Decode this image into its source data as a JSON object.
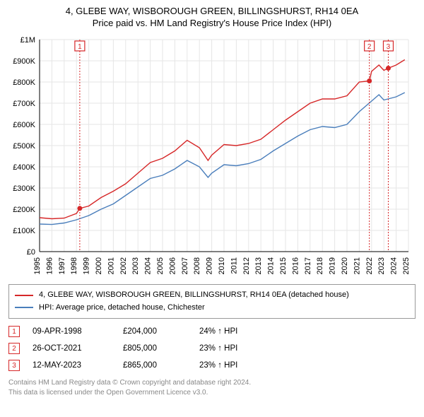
{
  "title": {
    "main": "4, GLEBE WAY, WISBOROUGH GREEN, BILLINGSHURST, RH14 0EA",
    "sub": "Price paid vs. HM Land Registry's House Price Index (HPI)"
  },
  "chart": {
    "type": "line",
    "background_color": "#ffffff",
    "grid_color": "#e6e6e6",
    "axis_color": "#000000",
    "label_fontsize": 11,
    "xlim": [
      1995,
      2025
    ],
    "ylim": [
      0,
      1000000
    ],
    "ytick_step": 100000,
    "ytick_labels": [
      "£0",
      "£100K",
      "£200K",
      "£300K",
      "£400K",
      "£500K",
      "£600K",
      "£700K",
      "£800K",
      "£900K",
      "£1M"
    ],
    "xticks": [
      1995,
      1996,
      1997,
      1998,
      1999,
      2000,
      2001,
      2002,
      2003,
      2004,
      2005,
      2006,
      2007,
      2008,
      2009,
      2010,
      2011,
      2012,
      2013,
      2014,
      2015,
      2016,
      2017,
      2018,
      2019,
      2020,
      2021,
      2022,
      2023,
      2024,
      2025
    ],
    "series": [
      {
        "id": "property",
        "color": "#d62728",
        "line_width": 1.4,
        "points": [
          [
            1995,
            160000
          ],
          [
            1996,
            155000
          ],
          [
            1997,
            158000
          ],
          [
            1998,
            180000
          ],
          [
            1998.27,
            204000
          ],
          [
            1999,
            215000
          ],
          [
            2000,
            255000
          ],
          [
            2001,
            285000
          ],
          [
            2002,
            320000
          ],
          [
            2003,
            370000
          ],
          [
            2004,
            420000
          ],
          [
            2005,
            440000
          ],
          [
            2006,
            475000
          ],
          [
            2007,
            525000
          ],
          [
            2008,
            490000
          ],
          [
            2008.7,
            430000
          ],
          [
            2009,
            455000
          ],
          [
            2010,
            505000
          ],
          [
            2011,
            500000
          ],
          [
            2012,
            510000
          ],
          [
            2013,
            530000
          ],
          [
            2014,
            575000
          ],
          [
            2015,
            620000
          ],
          [
            2016,
            660000
          ],
          [
            2017,
            700000
          ],
          [
            2018,
            720000
          ],
          [
            2019,
            720000
          ],
          [
            2020,
            735000
          ],
          [
            2021,
            800000
          ],
          [
            2021.82,
            805000
          ],
          [
            2022,
            850000
          ],
          [
            2022.6,
            880000
          ],
          [
            2023,
            855000
          ],
          [
            2023.36,
            865000
          ],
          [
            2024,
            880000
          ],
          [
            2024.7,
            905000
          ]
        ]
      },
      {
        "id": "hpi",
        "color": "#4a7ebb",
        "line_width": 1.4,
        "points": [
          [
            1995,
            130000
          ],
          [
            1996,
            128000
          ],
          [
            1997,
            135000
          ],
          [
            1998,
            150000
          ],
          [
            1999,
            170000
          ],
          [
            2000,
            200000
          ],
          [
            2001,
            225000
          ],
          [
            2002,
            265000
          ],
          [
            2003,
            305000
          ],
          [
            2004,
            345000
          ],
          [
            2005,
            360000
          ],
          [
            2006,
            390000
          ],
          [
            2007,
            430000
          ],
          [
            2008,
            400000
          ],
          [
            2008.7,
            350000
          ],
          [
            2009,
            370000
          ],
          [
            2010,
            410000
          ],
          [
            2011,
            405000
          ],
          [
            2012,
            415000
          ],
          [
            2013,
            435000
          ],
          [
            2014,
            475000
          ],
          [
            2015,
            510000
          ],
          [
            2016,
            545000
          ],
          [
            2017,
            575000
          ],
          [
            2018,
            590000
          ],
          [
            2019,
            585000
          ],
          [
            2020,
            600000
          ],
          [
            2021,
            660000
          ],
          [
            2022,
            710000
          ],
          [
            2022.6,
            740000
          ],
          [
            2023,
            715000
          ],
          [
            2024,
            730000
          ],
          [
            2024.7,
            750000
          ]
        ]
      }
    ],
    "event_markers": [
      {
        "n": "1",
        "x": 1998.27,
        "y": 204000,
        "color": "#d62728"
      },
      {
        "n": "2",
        "x": 2021.82,
        "y": 805000,
        "color": "#d62728"
      },
      {
        "n": "3",
        "x": 2023.36,
        "y": 865000,
        "color": "#d62728"
      }
    ],
    "point_marker": {
      "radius": 3.5,
      "fill": "#d62728"
    }
  },
  "legend": {
    "border_color": "#999999",
    "items": [
      {
        "color": "#d62728",
        "label": "4, GLEBE WAY, WISBOROUGH GREEN, BILLINGSHURST, RH14 0EA (detached house)"
      },
      {
        "color": "#4a7ebb",
        "label": "HPI: Average price, detached house, Chichester"
      }
    ]
  },
  "events": {
    "rows": [
      {
        "n": "1",
        "color": "#d62728",
        "date": "09-APR-1998",
        "price": "£204,000",
        "pct": "24% ↑ HPI"
      },
      {
        "n": "2",
        "color": "#d62728",
        "date": "26-OCT-2021",
        "price": "£805,000",
        "pct": "23% ↑ HPI"
      },
      {
        "n": "3",
        "color": "#d62728",
        "date": "12-MAY-2023",
        "price": "£865,000",
        "pct": "23% ↑ HPI"
      }
    ]
  },
  "footer": {
    "line1": "Contains HM Land Registry data © Crown copyright and database right 2024.",
    "line2": "This data is licensed under the Open Government Licence v3.0."
  }
}
